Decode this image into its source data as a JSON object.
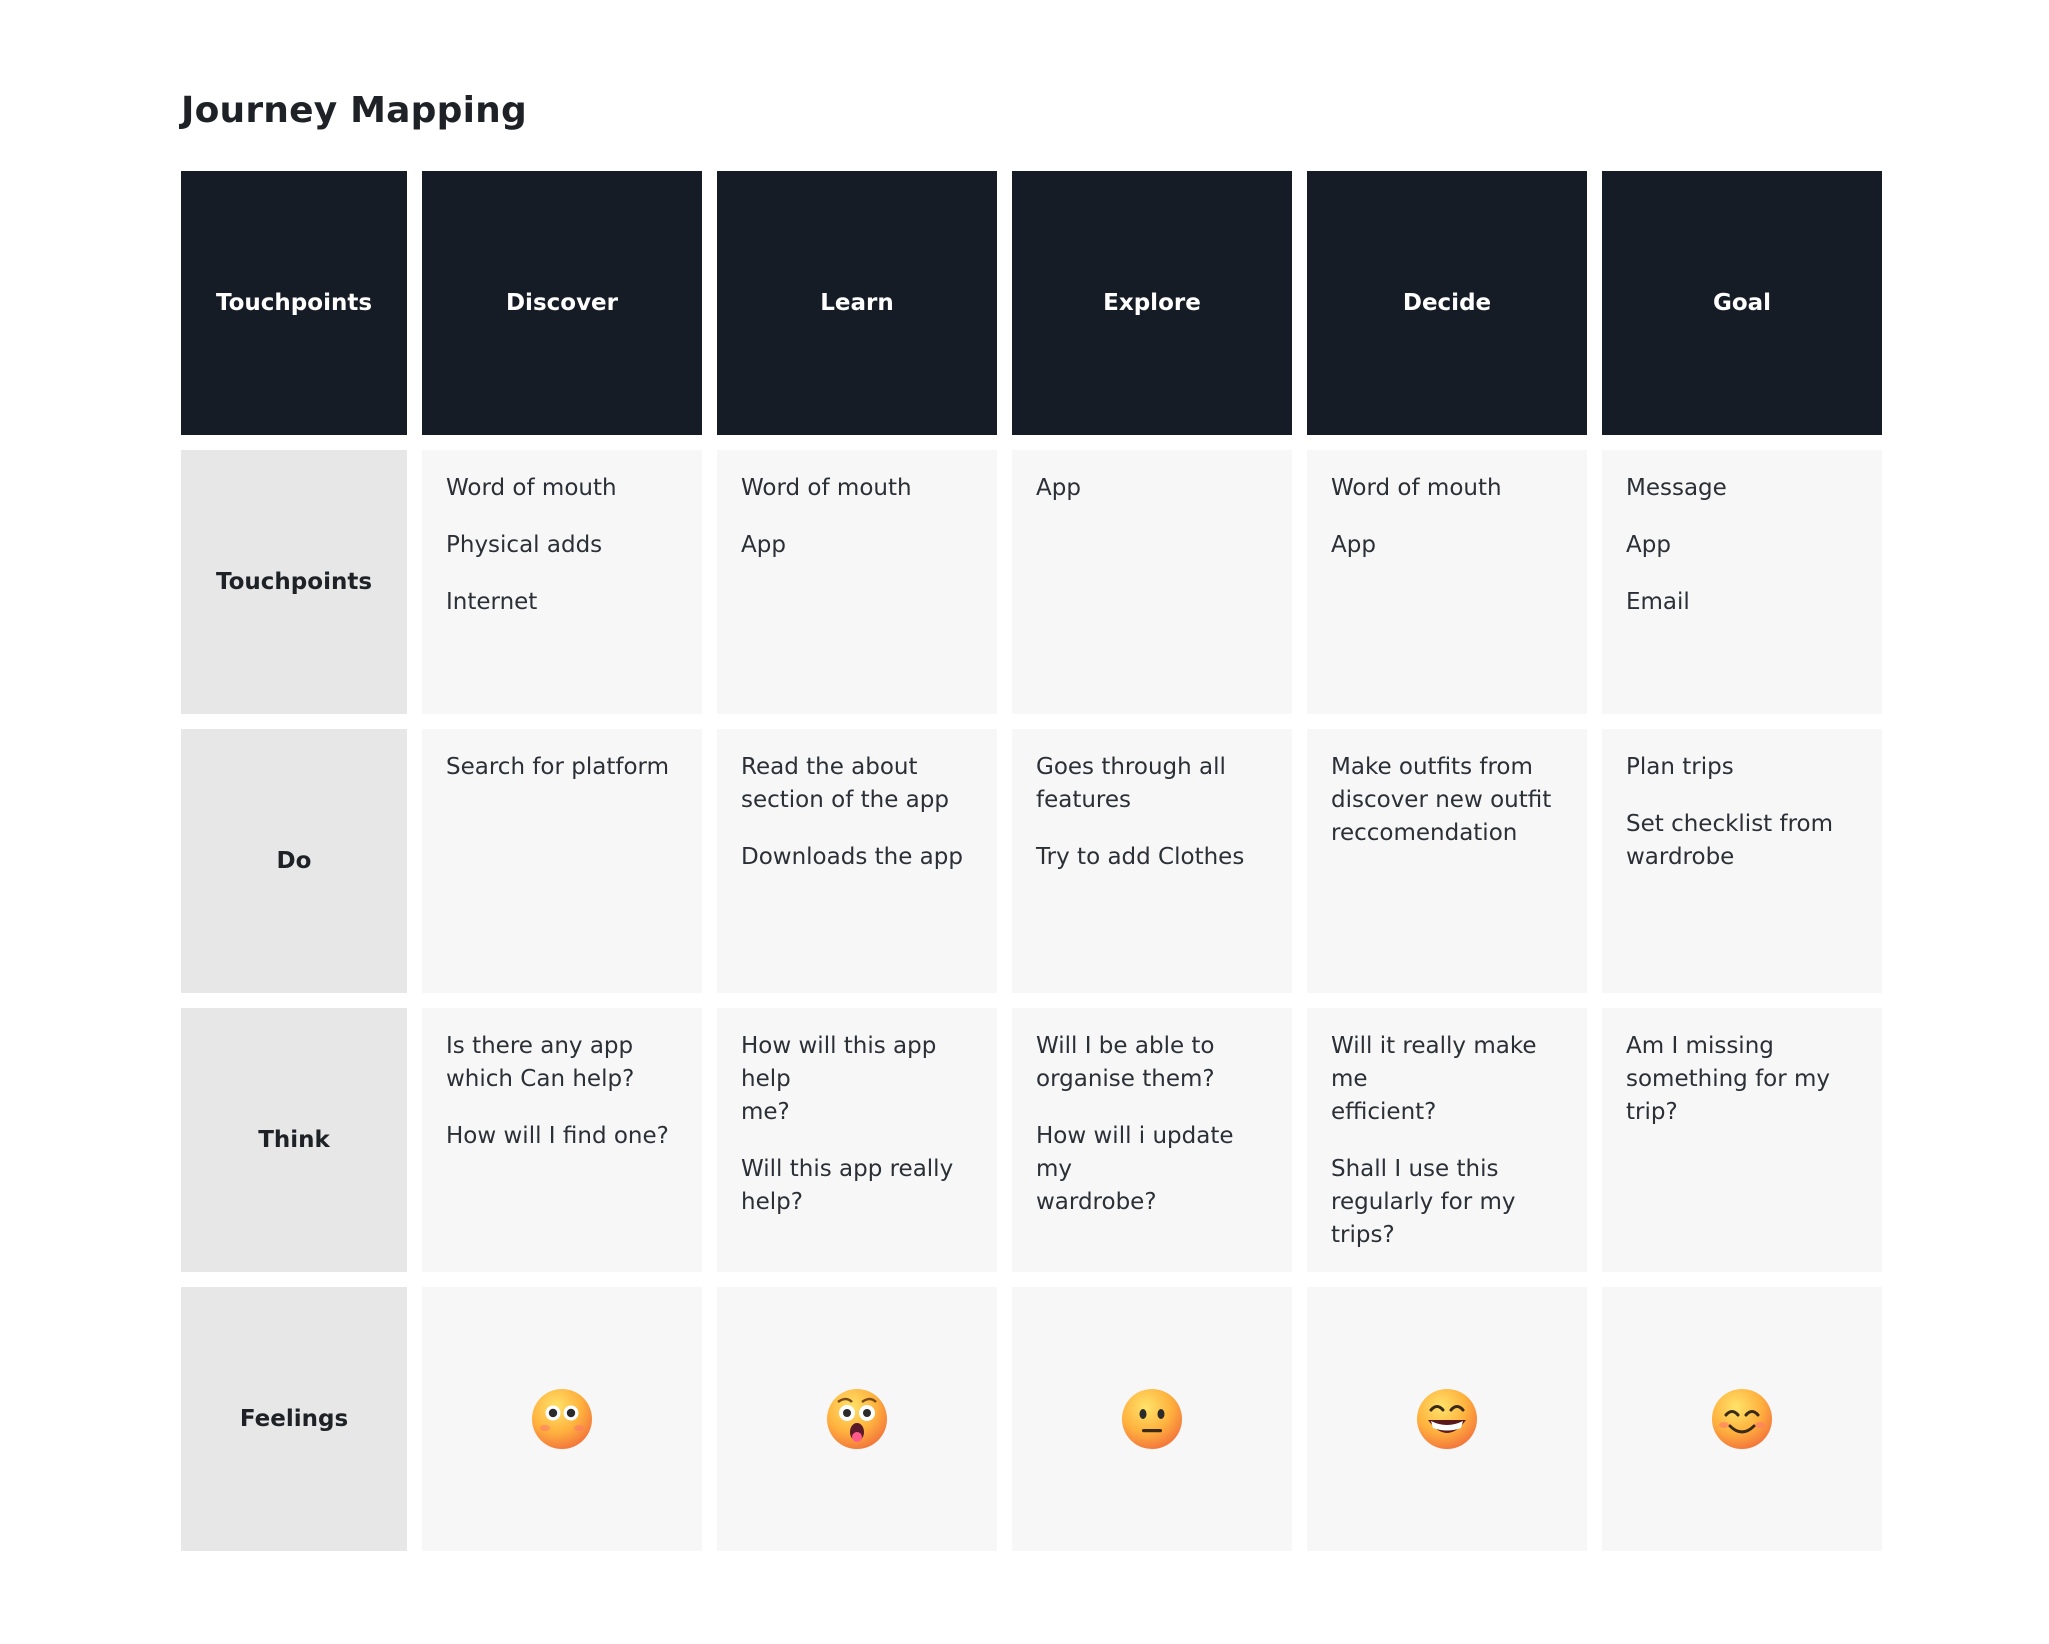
{
  "title": "Journey Mapping",
  "headers": [
    "Touchpoints",
    "Discover",
    "Learn",
    "Explore",
    "Decide",
    "Goal"
  ],
  "rows": [
    {
      "label": "Touchpoints",
      "cells": [
        [
          [
            "Word of mouth"
          ],
          [
            "Physical adds"
          ],
          [
            "Internet"
          ]
        ],
        [
          [
            "Word of mouth"
          ],
          [
            "App"
          ]
        ],
        [
          [
            "App"
          ]
        ],
        [
          [
            "Word of mouth"
          ],
          [
            "App"
          ]
        ],
        [
          [
            "Message"
          ],
          [
            "App"
          ],
          [
            "Email"
          ]
        ]
      ]
    },
    {
      "label": "Do",
      "cells": [
        [
          [
            "Search for platform"
          ]
        ],
        [
          [
            "Read the about",
            "section of the app"
          ],
          [
            "Downloads the app"
          ]
        ],
        [
          [
            "Goes through all",
            "features"
          ],
          [
            "Try to add Clothes"
          ]
        ],
        [
          [
            "Make outfits from",
            "discover new outfit",
            "reccomendation"
          ]
        ],
        [
          [
            "Plan trips"
          ],
          [
            "Set checklist from",
            "wardrobe"
          ]
        ]
      ]
    },
    {
      "label": "Think",
      "cells": [
        [
          [
            "Is there any app",
            "which Can help?"
          ],
          [
            "How will I find one?"
          ]
        ],
        [
          [
            "How will this app help",
            "me?"
          ],
          [
            "Will this app really",
            "help?"
          ]
        ],
        [
          [
            "Will I be able to",
            "organise them?"
          ],
          [
            "How will i update my",
            "wardrobe?"
          ]
        ],
        [
          [
            "Will it really make me",
            "efficient?"
          ],
          [
            "Shall I use this",
            "regularly for my trips?"
          ]
        ],
        [
          [
            "Am I missing",
            "something for my",
            "trip?"
          ]
        ]
      ]
    }
  ],
  "feelings": {
    "label": "Feelings",
    "emojis": [
      "flushed-face-icon",
      "astonished-tongue-face-icon",
      "neutral-face-icon",
      "grinning-face-icon",
      "smiling-face-icon"
    ]
  },
  "colors": {
    "header_bg": "#161c26",
    "row_label_bg": "#e7e7e7",
    "cell_bg": "#f7f7f7"
  }
}
